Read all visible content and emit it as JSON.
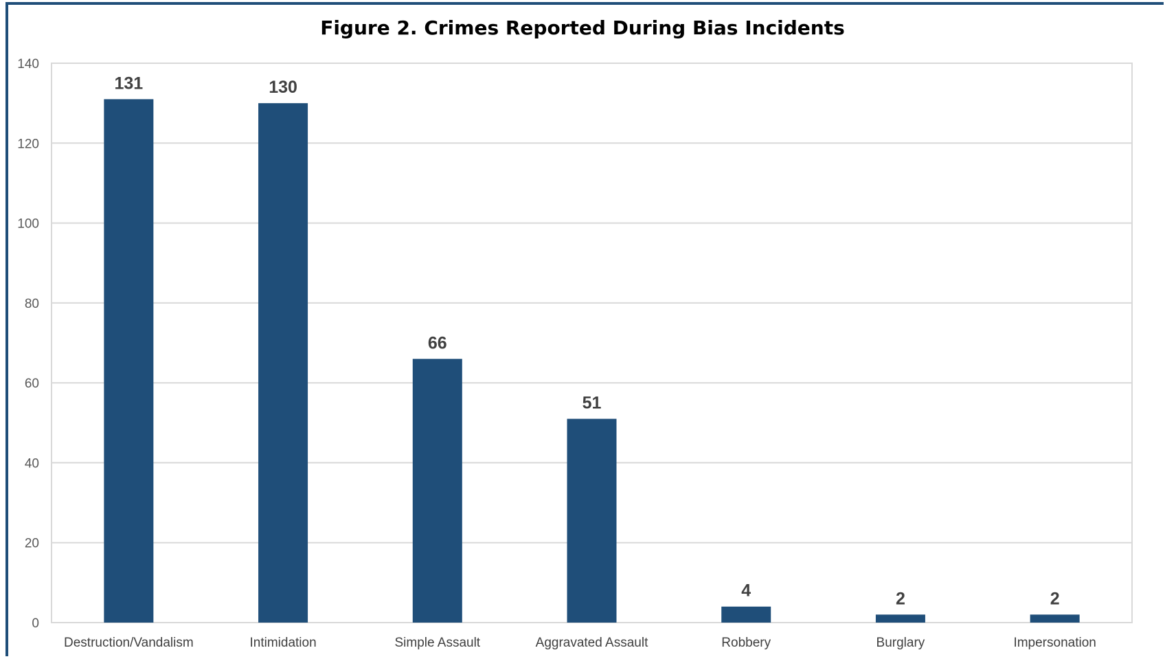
{
  "chart_data": {
    "type": "bar",
    "title": "Figure 2. Crimes Reported During Bias Incidents",
    "xlabel": "",
    "ylabel": "",
    "categories": [
      "Destruction/Vandalism",
      "Intimidation",
      "Simple Assault",
      "Aggravated Assault",
      "Robbery",
      "Burglary",
      "Impersonation"
    ],
    "values": [
      131,
      130,
      66,
      51,
      4,
      2,
      2
    ],
    "data_labels": [
      "131",
      "130",
      "66",
      "51",
      "4",
      "2",
      "2"
    ],
    "ylim": [
      0,
      140
    ],
    "yticks": [
      0,
      20,
      40,
      60,
      80,
      100,
      120,
      140
    ],
    "grid": true,
    "legend": "none",
    "bar_color": "#1f4e79",
    "frame_color": "#1f4e79",
    "gridline_color": "#d9d9d9"
  }
}
